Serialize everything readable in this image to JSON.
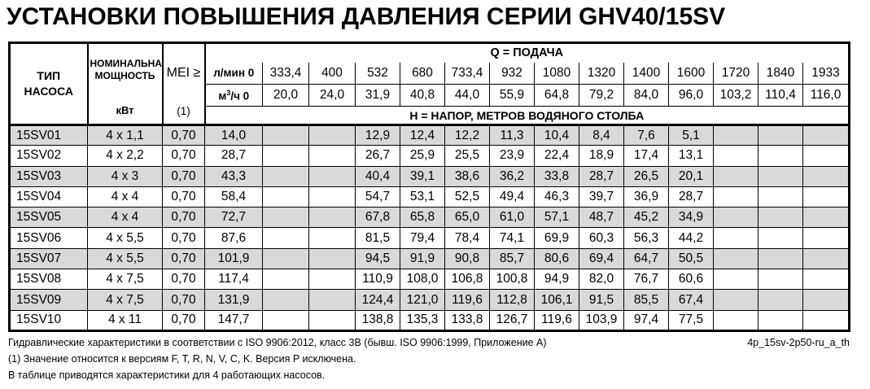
{
  "title": "УСТАНОВКИ ПОВЫШЕНИЯ ДАВЛЕНИЯ СЕРИИ GHV40/15SV",
  "table": {
    "pump_type_line1": "ТИП",
    "pump_type_line2": "НАСОСА",
    "power_header": "НОМИНАЛЬНАЯ МОЩНОСТЬ",
    "power_unit": "кВт",
    "mei_header": "MEI ≥",
    "mei_ref": "(1)",
    "q_header": "Q = ПОДАЧА",
    "flow_lmin_zero": "л/мин 0",
    "m3h_prefix": "м",
    "m3h_sup": "3",
    "m3h_suffix": "/ч 0",
    "flow_lmin": [
      "333,4",
      "400",
      "532",
      "680",
      "733,4",
      "932",
      "1080",
      "1320",
      "1400",
      "1600",
      "1720",
      "1840",
      "1933"
    ],
    "flow_m3h": [
      "20,0",
      "24,0",
      "31,9",
      "40,8",
      "44,0",
      "55,9",
      "64,8",
      "79,2",
      "84,0",
      "96,0",
      "103,2",
      "110,4",
      "116,0"
    ],
    "h_header": "Н = НАПОР, МЕТРОВ ВОДЯНОГО СТОЛБА",
    "rows": [
      {
        "pump": "15SV01",
        "power": "4 x 1,1",
        "mei": "0,70",
        "heads": [
          "14,0",
          "",
          "",
          "12,9",
          "12,4",
          "12,2",
          "11,3",
          "10,4",
          "8,4",
          "7,6",
          "5,1",
          "",
          "",
          ""
        ]
      },
      {
        "pump": "15SV02",
        "power": "4 x 2,2",
        "mei": "0,70",
        "heads": [
          "28,7",
          "",
          "",
          "26,7",
          "25,9",
          "25,5",
          "23,9",
          "22,4",
          "18,9",
          "17,4",
          "13,1",
          "",
          "",
          ""
        ]
      },
      {
        "pump": "15SV03",
        "power": "4 x 3",
        "mei": "0,70",
        "heads": [
          "43,3",
          "",
          "",
          "40,4",
          "39,1",
          "38,6",
          "36,2",
          "33,8",
          "28,7",
          "26,5",
          "20,1",
          "",
          "",
          ""
        ]
      },
      {
        "pump": "15SV04",
        "power": "4 x 4",
        "mei": "0,70",
        "heads": [
          "58,4",
          "",
          "",
          "54,7",
          "53,1",
          "52,5",
          "49,4",
          "46,3",
          "39,7",
          "36,9",
          "28,7",
          "",
          "",
          ""
        ]
      },
      {
        "pump": "15SV05",
        "power": "4 x 4",
        "mei": "0,70",
        "heads": [
          "72,7",
          "",
          "",
          "67,8",
          "65,8",
          "65,0",
          "61,0",
          "57,1",
          "48,7",
          "45,2",
          "34,9",
          "",
          "",
          ""
        ]
      },
      {
        "pump": "15SV06",
        "power": "4 x 5,5",
        "mei": "0,70",
        "heads": [
          "87,6",
          "",
          "",
          "81,5",
          "79,4",
          "78,4",
          "74,1",
          "69,9",
          "60,3",
          "56,3",
          "44,2",
          "",
          "",
          ""
        ]
      },
      {
        "pump": "15SV07",
        "power": "4 x 5,5",
        "mei": "0,70",
        "heads": [
          "101,9",
          "",
          "",
          "94,5",
          "91,9",
          "90,8",
          "85,7",
          "80,6",
          "69,4",
          "64,7",
          "50,5",
          "",
          "",
          ""
        ]
      },
      {
        "pump": "15SV08",
        "power": "4 x 7,5",
        "mei": "0,70",
        "heads": [
          "117,4",
          "",
          "",
          "110,9",
          "108,0",
          "106,8",
          "100,8",
          "94,9",
          "82,0",
          "76,7",
          "60,6",
          "",
          "",
          ""
        ]
      },
      {
        "pump": "15SV09",
        "power": "4 x 7,5",
        "mei": "0,70",
        "heads": [
          "131,9",
          "",
          "",
          "124,4",
          "121,0",
          "119,6",
          "112,8",
          "106,1",
          "91,5",
          "85,5",
          "67,4",
          "",
          "",
          ""
        ]
      },
      {
        "pump": "15SV10",
        "power": "4 x 11",
        "mei": "0,70",
        "heads": [
          "147,7",
          "",
          "",
          "138,8",
          "135,3",
          "133,8",
          "126,7",
          "119,6",
          "103,9",
          "97,4",
          "77,5",
          "",
          "",
          ""
        ]
      }
    ]
  },
  "footer": {
    "note_hydraulic": "Гидравлические характеристики в соответствии с ISO 9906:2012, класс 3B (бывш. ISO 9906:1999, Приложение A)",
    "doc_code": "4p_15sv-2p50-ru_a_th",
    "note_mei": "(1) Значение относится к версиям F, T, R, N, V, C, K. Версия P исключена.",
    "note_pumps": "В таблице приводятся характеристики для 4 работающих насосов."
  },
  "colors": {
    "row_shaded": "#d9d9d9",
    "border": "#000000",
    "text": "#000000"
  }
}
